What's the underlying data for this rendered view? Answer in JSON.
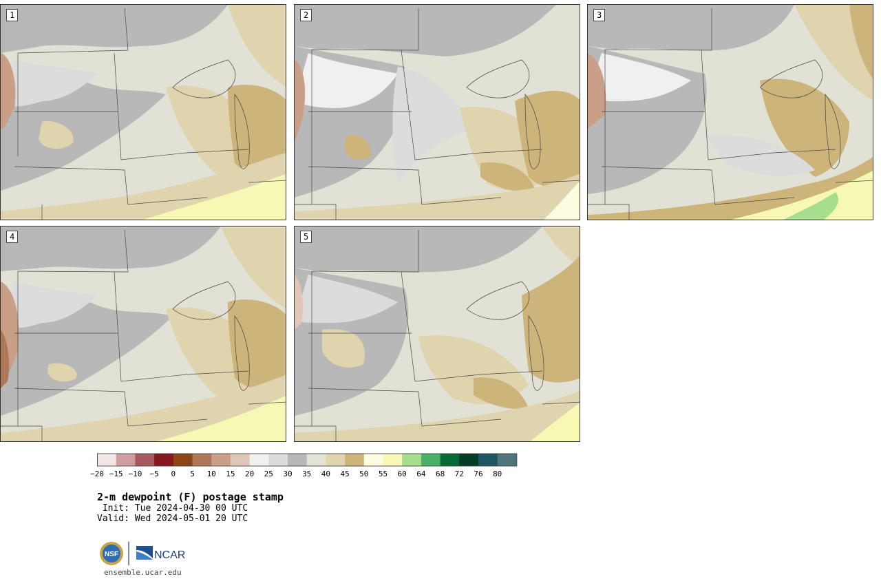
{
  "panels": [
    {
      "label": "1"
    },
    {
      "label": "2"
    },
    {
      "label": "3"
    },
    {
      "label": "4"
    },
    {
      "label": "5"
    }
  ],
  "colorbar": {
    "colors": [
      "#f2e6e6",
      "#d09da0",
      "#a65a5f",
      "#861820",
      "#8b4516",
      "#ae7858",
      "#c99f88",
      "#e0c6b6",
      "#f0f0f0",
      "#dcdcdc",
      "#b8b8b8",
      "#e3e2d7",
      "#e0d4ae",
      "#ccb47a",
      "#fdfbe0",
      "#f6f8b4",
      "#a6de8e",
      "#4ab066",
      "#066a36",
      "#033b25",
      "#1d5563",
      "#4f7479"
    ],
    "ticks": [
      "-20",
      "-15",
      "-10",
      "-5",
      "0",
      "5",
      "10",
      "15",
      "20",
      "25",
      "30",
      "35",
      "40",
      "45",
      "50",
      "55",
      "60",
      "64",
      "68",
      "72",
      "76",
      "80"
    ]
  },
  "title": "2-m dewpoint (F) postage stamp",
  "init": " Init: Tue 2024-04-30 00 UTC",
  "valid": "Valid: Wed 2024-05-01 20 UTC",
  "logos": {
    "nsf": "NSF",
    "ncar": "NCAR"
  },
  "url": "ensemble.ucar.edu"
}
